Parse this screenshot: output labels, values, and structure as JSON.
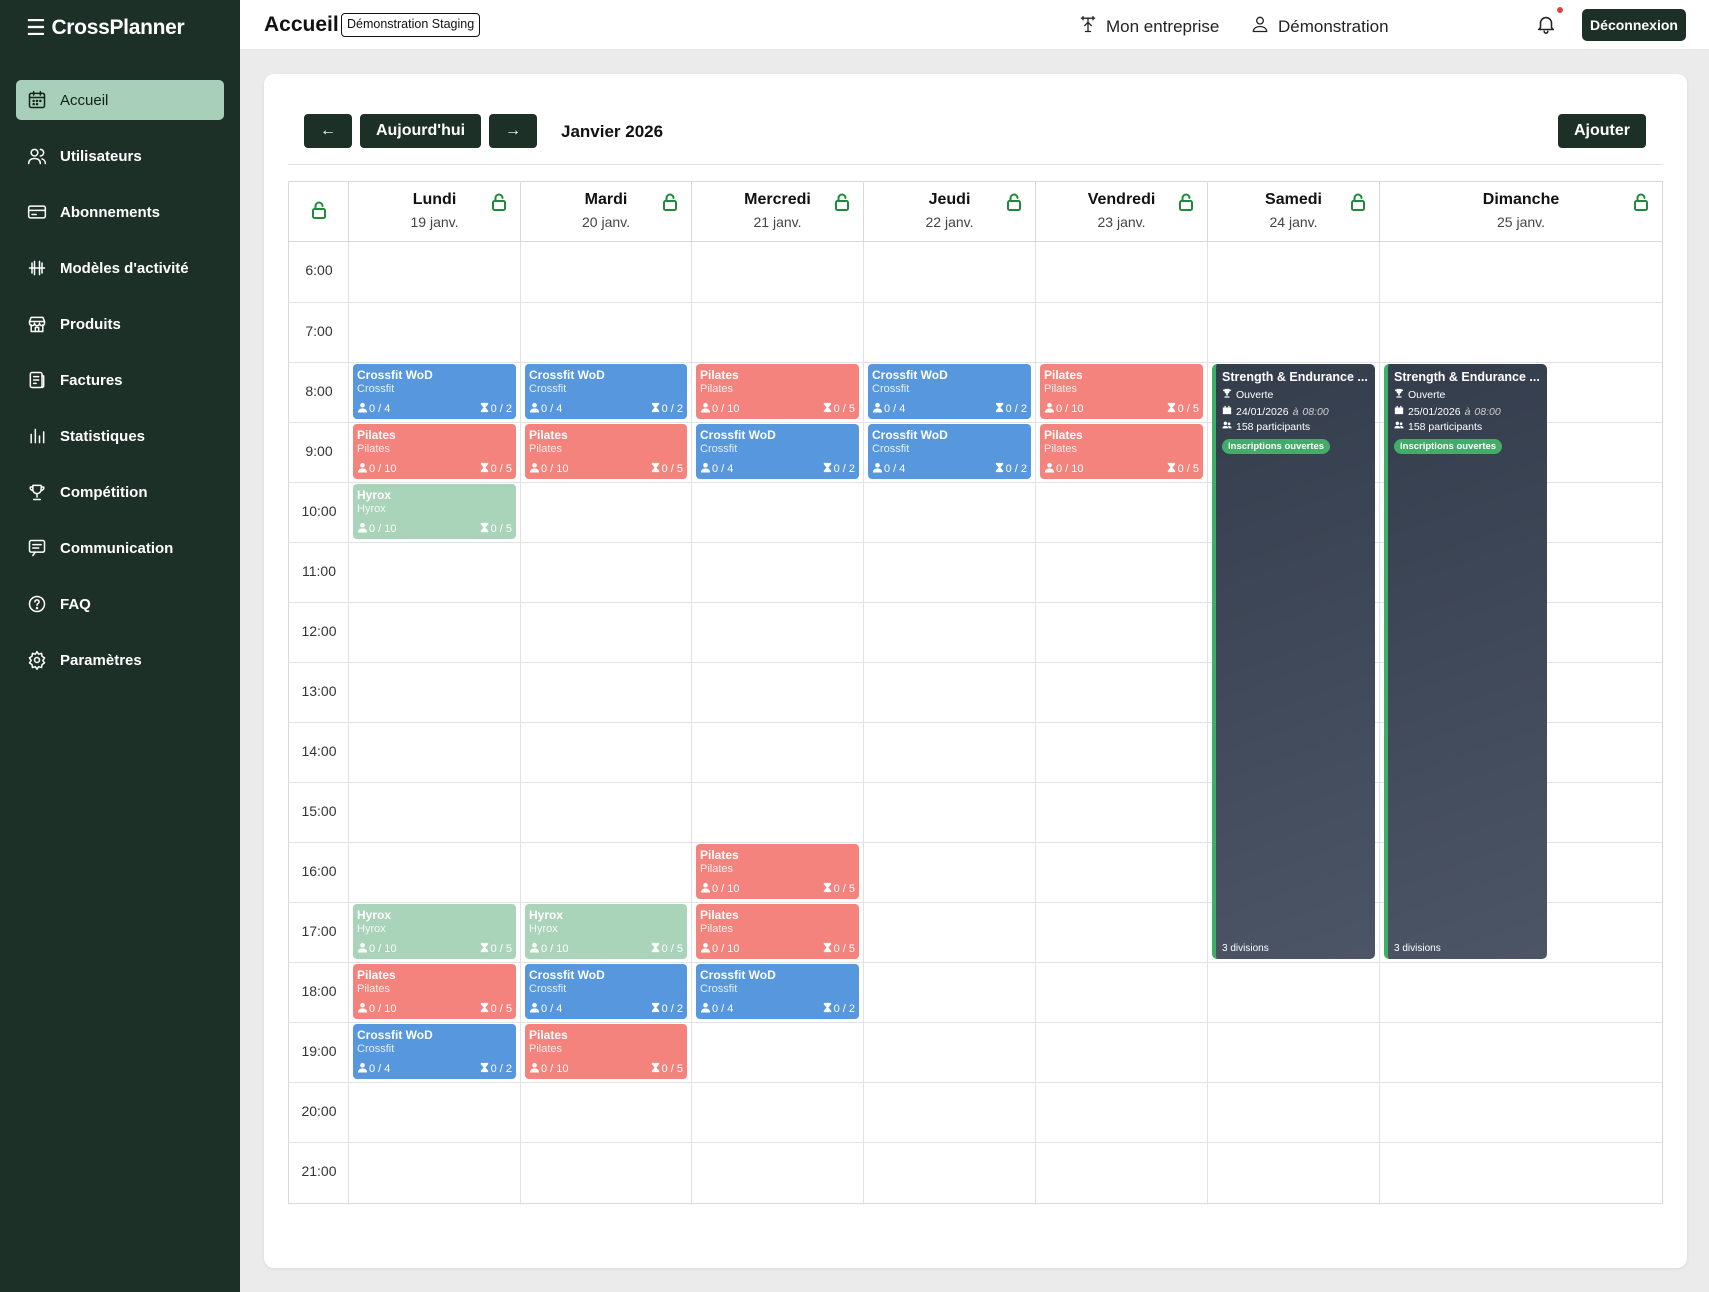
{
  "app": {
    "brand": "CrossPlanner"
  },
  "sidebar": {
    "items": [
      {
        "label": "Accueil",
        "icon": "calendar-icon",
        "active": true
      },
      {
        "label": "Utilisateurs",
        "icon": "users-icon"
      },
      {
        "label": "Abonnements",
        "icon": "card-icon"
      },
      {
        "label": "Modèles d'activité",
        "icon": "dumbbell-icon"
      },
      {
        "label": "Produits",
        "icon": "store-icon"
      },
      {
        "label": "Factures",
        "icon": "invoice-icon"
      },
      {
        "label": "Statistiques",
        "icon": "chart-icon"
      },
      {
        "label": "Compétition",
        "icon": "trophy-icon"
      },
      {
        "label": "Communication",
        "icon": "message-icon"
      },
      {
        "label": "FAQ",
        "icon": "help-icon"
      },
      {
        "label": "Paramètres",
        "icon": "gear-icon"
      }
    ]
  },
  "header": {
    "title": "Accueil",
    "env_badge": "Démonstration Staging",
    "company": "Mon entreprise",
    "user": "Démonstration",
    "logout": "Déconnexion"
  },
  "toolbar": {
    "prev": "←",
    "today": "Aujourd'hui",
    "next": "→",
    "month": "Janvier 2026",
    "add": "Ajouter"
  },
  "calendar": {
    "days": [
      {
        "name": "Lundi",
        "date": "19 janv."
      },
      {
        "name": "Mardi",
        "date": "20 janv."
      },
      {
        "name": "Mercredi",
        "date": "21 janv."
      },
      {
        "name": "Jeudi",
        "date": "22 janv."
      },
      {
        "name": "Vendredi",
        "date": "23 janv."
      },
      {
        "name": "Samedi",
        "date": "24 janv."
      },
      {
        "name": "Dimanche",
        "date": "25 janv."
      }
    ],
    "hours": [
      "6:00",
      "7:00",
      "8:00",
      "9:00",
      "10:00",
      "11:00",
      "12:00",
      "13:00",
      "14:00",
      "15:00",
      "16:00",
      "17:00",
      "18:00",
      "19:00",
      "20:00",
      "21:00"
    ],
    "events": [
      {
        "day": 0,
        "hour": 8,
        "kind": "crossfit",
        "title": "Crossfit WoD",
        "sub": "Crossfit",
        "participants": "0 / 4",
        "waitlist": "0 / 2"
      },
      {
        "day": 0,
        "hour": 9,
        "kind": "pilates",
        "title": "Pilates",
        "sub": "Pilates",
        "participants": "0 / 10",
        "waitlist": "0 / 5"
      },
      {
        "day": 0,
        "hour": 10,
        "kind": "hyrox",
        "title": "Hyrox",
        "sub": "Hyrox",
        "participants": "0 / 10",
        "waitlist": "0 / 5"
      },
      {
        "day": 0,
        "hour": 17,
        "kind": "hyrox",
        "title": "Hyrox",
        "sub": "Hyrox",
        "participants": "0 / 10",
        "waitlist": "0 / 5"
      },
      {
        "day": 0,
        "hour": 18,
        "kind": "pilates",
        "title": "Pilates",
        "sub": "Pilates",
        "participants": "0 / 10",
        "waitlist": "0 / 5"
      },
      {
        "day": 0,
        "hour": 19,
        "kind": "crossfit",
        "title": "Crossfit WoD",
        "sub": "Crossfit",
        "participants": "0 / 4",
        "waitlist": "0 / 2"
      },
      {
        "day": 1,
        "hour": 8,
        "kind": "crossfit",
        "title": "Crossfit WoD",
        "sub": "Crossfit",
        "participants": "0 / 4",
        "waitlist": "0 / 2"
      },
      {
        "day": 1,
        "hour": 9,
        "kind": "pilates",
        "title": "Pilates",
        "sub": "Pilates",
        "participants": "0 / 10",
        "waitlist": "0 / 5"
      },
      {
        "day": 1,
        "hour": 17,
        "kind": "hyrox",
        "title": "Hyrox",
        "sub": "Hyrox",
        "participants": "0 / 10",
        "waitlist": "0 / 5"
      },
      {
        "day": 1,
        "hour": 18,
        "kind": "crossfit",
        "title": "Crossfit WoD",
        "sub": "Crossfit",
        "participants": "0 / 4",
        "waitlist": "0 / 2"
      },
      {
        "day": 1,
        "hour": 19,
        "kind": "pilates",
        "title": "Pilates",
        "sub": "Pilates",
        "participants": "0 / 10",
        "waitlist": "0 / 5"
      },
      {
        "day": 2,
        "hour": 8,
        "kind": "pilates",
        "title": "Pilates",
        "sub": "Pilates",
        "participants": "0 / 10",
        "waitlist": "0 / 5"
      },
      {
        "day": 2,
        "hour": 9,
        "kind": "crossfit",
        "title": "Crossfit WoD",
        "sub": "Crossfit",
        "participants": "0 / 4",
        "waitlist": "0 / 2"
      },
      {
        "day": 2,
        "hour": 16,
        "kind": "pilates",
        "title": "Pilates",
        "sub": "Pilates",
        "participants": "0 / 10",
        "waitlist": "0 / 5"
      },
      {
        "day": 2,
        "hour": 17,
        "kind": "pilates",
        "title": "Pilates",
        "sub": "Pilates",
        "participants": "0 / 10",
        "waitlist": "0 / 5"
      },
      {
        "day": 2,
        "hour": 18,
        "kind": "crossfit",
        "title": "Crossfit WoD",
        "sub": "Crossfit",
        "participants": "0 / 4",
        "waitlist": "0 / 2"
      },
      {
        "day": 3,
        "hour": 8,
        "kind": "crossfit",
        "title": "Crossfit WoD",
        "sub": "Crossfit",
        "participants": "0 / 4",
        "waitlist": "0 / 2"
      },
      {
        "day": 3,
        "hour": 9,
        "kind": "crossfit",
        "title": "Crossfit WoD",
        "sub": "Crossfit",
        "participants": "0 / 4",
        "waitlist": "0 / 2"
      },
      {
        "day": 4,
        "hour": 8,
        "kind": "pilates",
        "title": "Pilates",
        "sub": "Pilates",
        "participants": "0 / 10",
        "waitlist": "0 / 5"
      },
      {
        "day": 4,
        "hour": 9,
        "kind": "pilates",
        "title": "Pilates",
        "sub": "Pilates",
        "participants": "0 / 10",
        "waitlist": "0 / 5"
      }
    ],
    "competitions": [
      {
        "day": 5,
        "start_hour": 8,
        "end_hour": 18,
        "title": "Strength & Endurance ...",
        "status": "Ouverte",
        "date": "24/01/2026",
        "time_prefix": "à",
        "time": "08:00",
        "participants": "158 participants",
        "badge": "Inscriptions ouvertes",
        "divisions": "3 divisions"
      },
      {
        "day": 6,
        "start_hour": 8,
        "end_hour": 18,
        "title": "Strength & Endurance ...",
        "status": "Ouverte",
        "date": "25/01/2026",
        "time_prefix": "à",
        "time": "08:00",
        "participants": "158 participants",
        "badge": "Inscriptions ouvertes",
        "divisions": "3 divisions"
      }
    ]
  },
  "colors": {
    "sidebar": "#1c3028",
    "active_nav": "#a7cfb9",
    "crossfit": "#5797dd",
    "pilates": "#f3837c",
    "hyrox": "#a9d4ba",
    "competition": "#3c4454",
    "open_green": "#3fae68",
    "lock_green": "#1e8a3e"
  }
}
